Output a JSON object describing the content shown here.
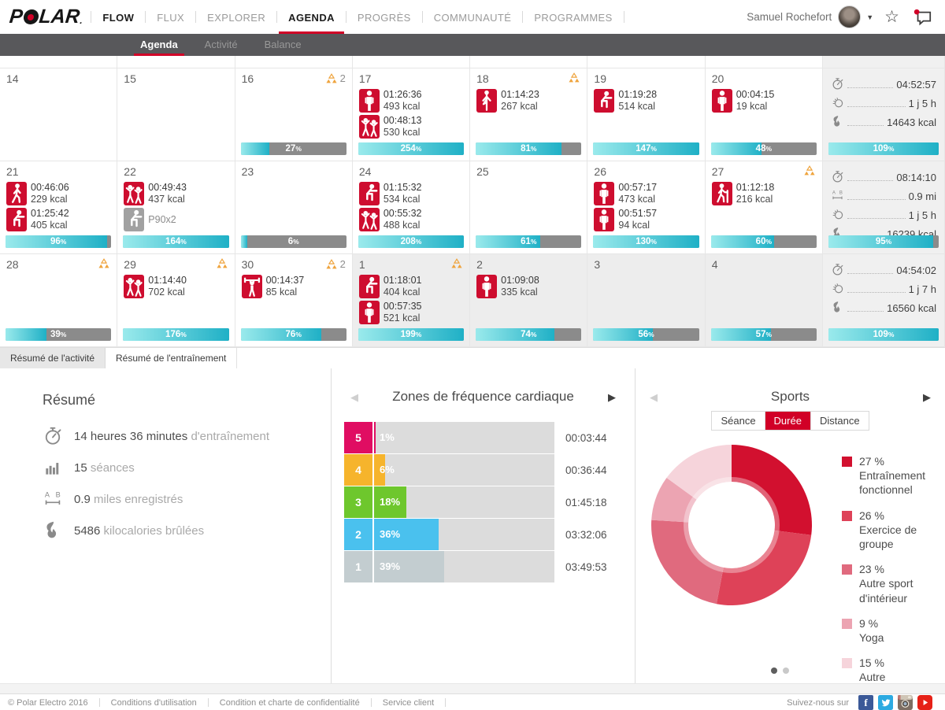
{
  "colors": {
    "accent": "#d10027",
    "bar_teal_from": "#9aeaec",
    "bar_teal_to": "#1fb0c6",
    "bar_gray": "#8b8b8b"
  },
  "header": {
    "logo_text": "POLAR",
    "logo_reg": ".",
    "nav": [
      {
        "label": "FLOW",
        "strong": true
      },
      {
        "label": "FLUX"
      },
      {
        "label": "EXPLORER"
      },
      {
        "label": "AGENDA",
        "active": true
      },
      {
        "label": "PROGRÈS"
      },
      {
        "label": "COMMUNAUTÉ"
      },
      {
        "label": "PROGRAMMES"
      }
    ],
    "user_name": "Samuel Rochefort"
  },
  "subnav": {
    "items": [
      {
        "label": "Agenda",
        "active": true
      },
      {
        "label": "Activité"
      },
      {
        "label": "Balance"
      }
    ]
  },
  "calendar": {
    "weeks": [
      {
        "days": [
          {
            "num": "14"
          },
          {
            "num": "15"
          },
          {
            "num": "16",
            "badge": true,
            "badge_count": "2",
            "bar_pct": 27
          },
          {
            "num": "17",
            "entries": [
              {
                "sport": "other-indoor",
                "time": "01:26:36",
                "kcal": "493 kcal"
              },
              {
                "sport": "group-exercise",
                "time": "00:48:13",
                "kcal": "530 kcal"
              }
            ],
            "bar_pct": 254
          },
          {
            "num": "18",
            "badge": true,
            "entries": [
              {
                "sport": "yoga",
                "time": "01:14:23",
                "kcal": "267 kcal"
              }
            ],
            "bar_pct": 81
          },
          {
            "num": "19",
            "entries": [
              {
                "sport": "functional-training",
                "time": "01:19:28",
                "kcal": "514 kcal"
              }
            ],
            "bar_pct": 147
          },
          {
            "num": "20",
            "entries": [
              {
                "sport": "other-indoor",
                "time": "00:04:15",
                "kcal": "19 kcal"
              }
            ],
            "bar_pct": 48
          }
        ],
        "summary": {
          "rows": [
            {
              "icon": "stopwatch",
              "value": "04:52:57"
            },
            {
              "icon": "active-time",
              "value": "1 j 5 h"
            },
            {
              "icon": "flame",
              "value": "14643 kcal"
            }
          ],
          "bar_pct": 109
        }
      },
      {
        "days": [
          {
            "num": "21",
            "entries": [
              {
                "sport": "walking",
                "time": "00:46:06",
                "kcal": "229 kcal"
              },
              {
                "sport": "functional-training",
                "time": "01:25:42",
                "kcal": "405 kcal"
              }
            ],
            "bar_pct": 96
          },
          {
            "num": "22",
            "entries": [
              {
                "sport": "group-exercise",
                "time": "00:49:43",
                "kcal": "437 kcal"
              },
              {
                "sport": "functional-training",
                "planned": true,
                "label": "P90x2"
              }
            ],
            "bar_pct": 164
          },
          {
            "num": "23",
            "bar_pct": 6
          },
          {
            "num": "24",
            "entries": [
              {
                "sport": "functional-training",
                "time": "01:15:32",
                "kcal": "534 kcal"
              },
              {
                "sport": "group-exercise",
                "time": "00:55:32",
                "kcal": "488 kcal"
              }
            ],
            "bar_pct": 208
          },
          {
            "num": "25",
            "bar_pct": 61
          },
          {
            "num": "26",
            "entries": [
              {
                "sport": "other-indoor",
                "time": "00:57:17",
                "kcal": "473 kcal"
              },
              {
                "sport": "other-indoor",
                "time": "00:51:57",
                "kcal": "94 kcal"
              }
            ],
            "bar_pct": 130
          },
          {
            "num": "27",
            "badge": true,
            "entries": [
              {
                "sport": "hiking",
                "time": "01:12:18",
                "kcal": "216 kcal"
              }
            ],
            "bar_pct": 60
          }
        ],
        "summary": {
          "rows": [
            {
              "icon": "stopwatch",
              "value": "08:14:10"
            },
            {
              "icon": "distance",
              "value": "0.9 mi"
            },
            {
              "icon": "active-time",
              "value": "1 j 5 h"
            },
            {
              "icon": "flame",
              "value": "16239 kcal"
            }
          ],
          "bar_pct": 95
        }
      },
      {
        "days": [
          {
            "num": "28",
            "badge": true,
            "bar_pct": 39
          },
          {
            "num": "29",
            "badge": true,
            "entries": [
              {
                "sport": "group-exercise",
                "time": "01:14:40",
                "kcal": "702 kcal"
              }
            ],
            "bar_pct": 176
          },
          {
            "num": "30",
            "badge": true,
            "badge_count": "2",
            "entries": [
              {
                "sport": "strength",
                "time": "00:14:37",
                "kcal": "85 kcal"
              }
            ],
            "bar_pct": 76
          },
          {
            "num": "1",
            "muted": true,
            "badge": true,
            "entries": [
              {
                "sport": "functional-training",
                "time": "01:18:01",
                "kcal": "404 kcal"
              },
              {
                "sport": "other-indoor",
                "time": "00:57:35",
                "kcal": "521 kcal"
              }
            ],
            "bar_pct": 199
          },
          {
            "num": "2",
            "muted": true,
            "entries": [
              {
                "sport": "other-indoor",
                "time": "01:09:08",
                "kcal": "335 kcal"
              }
            ],
            "bar_pct": 74
          },
          {
            "num": "3",
            "muted": true,
            "bar_pct": 56
          },
          {
            "num": "4",
            "muted": true,
            "bar_pct": 57
          }
        ],
        "summary": {
          "rows": [
            {
              "icon": "stopwatch",
              "value": "04:54:02"
            },
            {
              "icon": "active-time",
              "value": "1 j 7 h"
            },
            {
              "icon": "flame",
              "value": "16560 kcal"
            }
          ],
          "bar_pct": 109
        }
      }
    ]
  },
  "summary_tabs": [
    {
      "label": "Résumé de l'activité"
    },
    {
      "label": "Résumé de l'entraînement",
      "active": true
    }
  ],
  "training_summary": {
    "title": "Résumé",
    "rows": [
      {
        "icon": "stopwatch",
        "value": "14 heures 36 minutes",
        "label": "d'entraînement"
      },
      {
        "icon": "sessions",
        "value": "15",
        "label": "séances"
      },
      {
        "icon": "distance",
        "value": "0.9",
        "label": "miles enregistrés"
      },
      {
        "icon": "flame",
        "value": "5486",
        "label": "kilocalories brûlées"
      }
    ]
  },
  "hr_zones": {
    "title": "Zones de fréquence cardiaque",
    "rows": [
      {
        "zone": "5",
        "pct": 1,
        "time": "00:03:44",
        "color": "#e00d62"
      },
      {
        "zone": "4",
        "pct": 6,
        "time": "00:36:44",
        "color": "#f6b42c"
      },
      {
        "zone": "3",
        "pct": 18,
        "time": "01:45:18",
        "color": "#6ec72d"
      },
      {
        "zone": "2",
        "pct": 36,
        "time": "03:32:06",
        "color": "#4ac1ee"
      },
      {
        "zone": "1",
        "pct": 39,
        "time": "03:49:53",
        "color": "#c3cdd0"
      }
    ]
  },
  "sports": {
    "title": "Sports",
    "tabs": [
      {
        "label": "Séance"
      },
      {
        "label": "Durée",
        "active": true
      },
      {
        "label": "Distance"
      }
    ],
    "slices": [
      {
        "pct": 27,
        "label": "Entraînement fonctionnel",
        "color": "#d2102f"
      },
      {
        "pct": 26,
        "label": "Exercice de groupe",
        "color": "#de4258"
      },
      {
        "pct": 23,
        "label": "Autre sport d'intérieur",
        "color": "#e06a7e"
      },
      {
        "pct": 9,
        "label": "Yoga",
        "color": "#eca4b2"
      },
      {
        "pct": 15,
        "label": "Autre",
        "color": "#f6d4db"
      }
    ],
    "dots": 2
  },
  "chart_data": [
    {
      "type": "bar",
      "orientation": "horizontal",
      "title": "Zones de fréquence cardiaque",
      "categories": [
        "5",
        "4",
        "3",
        "2",
        "1"
      ],
      "values": [
        1,
        6,
        18,
        36,
        39
      ],
      "value_unit": "%",
      "xlim": [
        0,
        100
      ],
      "durations": [
        "00:03:44",
        "00:36:44",
        "01:45:18",
        "03:32:06",
        "03:49:53"
      ]
    },
    {
      "type": "pie",
      "title": "Sports",
      "donut": true,
      "labels": [
        "Entraînement fonctionnel",
        "Exercice de groupe",
        "Autre sport d'intérieur",
        "Yoga",
        "Autre"
      ],
      "values": [
        27,
        26,
        23,
        9,
        15
      ],
      "unit": "%",
      "legend_position": "right"
    }
  ],
  "footer": {
    "links": [
      "© Polar Electro 2016",
      "Conditions d'utilisation",
      "Condition et charte de confidentialité",
      "Service client"
    ],
    "follow_label": "Suivez-nous sur",
    "social": [
      "facebook-icon",
      "twitter-icon",
      "instagram-icon",
      "youtube-icon"
    ]
  }
}
